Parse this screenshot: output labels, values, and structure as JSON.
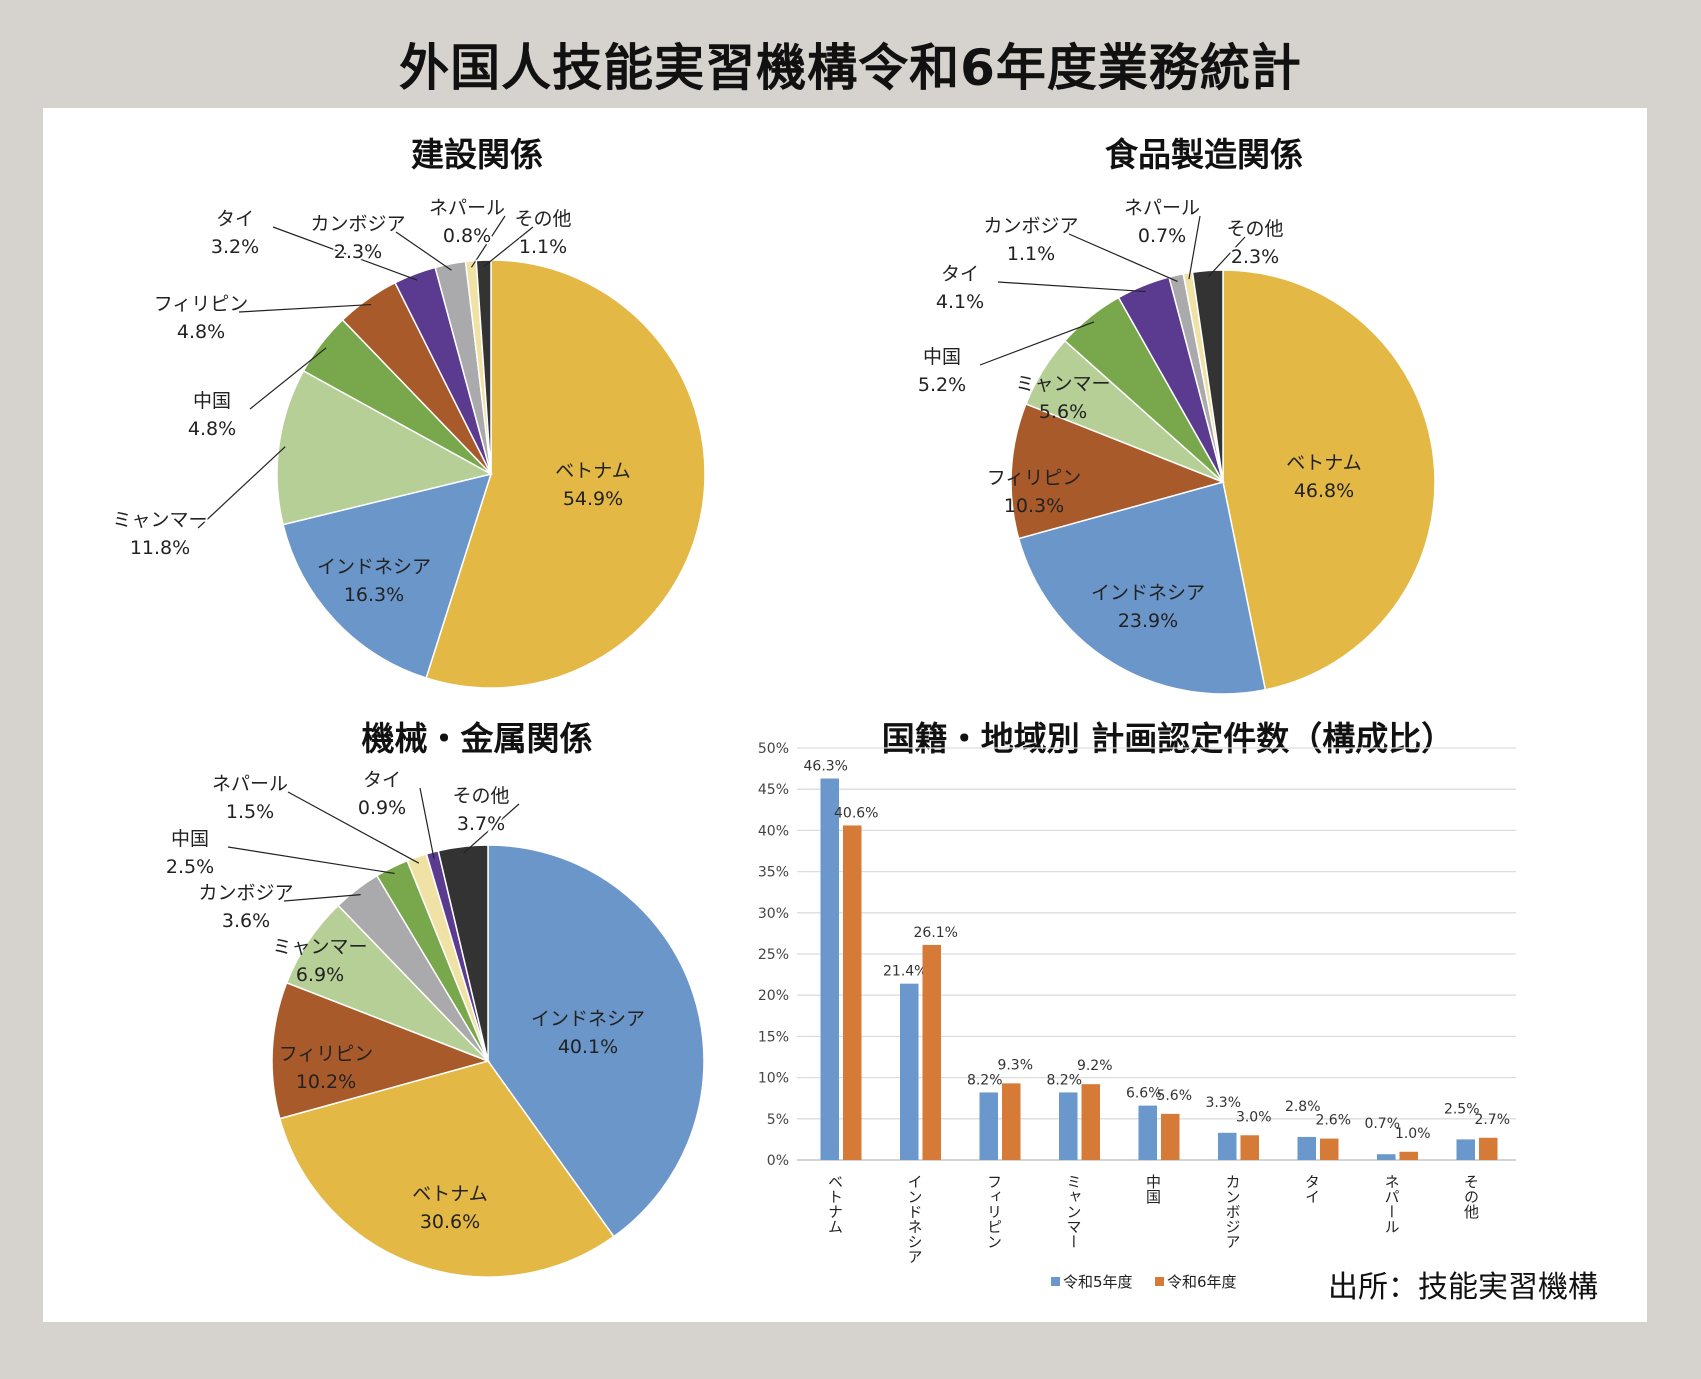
{
  "title": "外国人技能実習機構令和6年度業務統計",
  "source": "出所：技能実習機構",
  "colors": {
    "ベトナム": "#e3b845",
    "インドネシア": "#6b96c9",
    "ミャンマー": "#b5cf97",
    "中国": "#79a84c",
    "フィリピン": "#a95a2b",
    "タイ": "#5a3b8f",
    "カンボジア": "#aaa9ab",
    "ネパール": "#f0e2a5",
    "その他": "#333333",
    "series1": "#6a97cc",
    "series2": "#d67a37"
  },
  "chart_data": [
    {
      "type": "pie",
      "title": "建設関係",
      "slices": [
        {
          "label": "ベトナム",
          "value": 54.9,
          "text": "54.9%"
        },
        {
          "label": "インドネシア",
          "value": 16.3,
          "text": "16.3%"
        },
        {
          "label": "ミャンマー",
          "value": 11.8,
          "text": "11.8%"
        },
        {
          "label": "中国",
          "value": 4.8,
          "text": "4.8%"
        },
        {
          "label": "フィリピン",
          "value": 4.8,
          "text": "4.8%"
        },
        {
          "label": "タイ",
          "value": 3.2,
          "text": "3.2%"
        },
        {
          "label": "カンボジア",
          "value": 2.3,
          "text": "2.3%"
        },
        {
          "label": "ネパール",
          "value": 0.8,
          "text": "0.8%"
        },
        {
          "label": "その他",
          "value": 1.1,
          "text": "1.1%"
        }
      ]
    },
    {
      "type": "pie",
      "title": "食品製造関係",
      "slices": [
        {
          "label": "ベトナム",
          "value": 46.8,
          "text": "46.8%"
        },
        {
          "label": "インドネシア",
          "value": 23.9,
          "text": "23.9%"
        },
        {
          "label": "フィリピン",
          "value": 10.3,
          "text": "10.3%"
        },
        {
          "label": "ミャンマー",
          "value": 5.6,
          "text": "5.6%"
        },
        {
          "label": "中国",
          "value": 5.2,
          "text": "5.2%"
        },
        {
          "label": "タイ",
          "value": 4.1,
          "text": "4.1%"
        },
        {
          "label": "カンボジア",
          "value": 1.1,
          "text": "1.1%"
        },
        {
          "label": "ネパール",
          "value": 0.7,
          "text": "0.7%"
        },
        {
          "label": "その他",
          "value": 2.3,
          "text": "2.3%"
        }
      ]
    },
    {
      "type": "pie",
      "title": "機械・金属関係",
      "slices": [
        {
          "label": "インドネシア",
          "value": 40.1,
          "text": "40.1%"
        },
        {
          "label": "ベトナム",
          "value": 30.6,
          "text": "30.6%"
        },
        {
          "label": "フィリピン",
          "value": 10.2,
          "text": "10.2%"
        },
        {
          "label": "ミャンマー",
          "value": 6.9,
          "text": "6.9%"
        },
        {
          "label": "カンボジア",
          "value": 3.6,
          "text": "3.6%"
        },
        {
          "label": "中国",
          "value": 2.5,
          "text": "2.5%"
        },
        {
          "label": "ネパール",
          "value": 1.5,
          "text": "1.5%"
        },
        {
          "label": "タイ",
          "value": 0.9,
          "text": "0.9%"
        },
        {
          "label": "その他",
          "value": 3.7,
          "text": "3.7%"
        }
      ]
    },
    {
      "type": "bar",
      "title": "国籍・地域別 計画認定件数（構成比）",
      "categories": [
        "ベトナム",
        "インドネシア",
        "フィリピン",
        "ミャンマー",
        "中国",
        "カンボジア",
        "タイ",
        "ネパール",
        "その他"
      ],
      "series": [
        {
          "name": "令和5年度",
          "values": [
            46.3,
            21.4,
            8.2,
            8.2,
            6.6,
            3.3,
            2.8,
            0.7,
            2.5
          ]
        },
        {
          "name": "令和6年度",
          "values": [
            40.6,
            26.1,
            9.3,
            9.2,
            5.6,
            3.0,
            2.6,
            1.0,
            2.7
          ]
        }
      ],
      "yticks": [
        "0%",
        "5%",
        "10%",
        "15%",
        "20%",
        "25%",
        "30%",
        "35%",
        "40%",
        "45%",
        "50%"
      ],
      "ylim": [
        0,
        50
      ],
      "grid": true,
      "legend": "bottom"
    }
  ]
}
